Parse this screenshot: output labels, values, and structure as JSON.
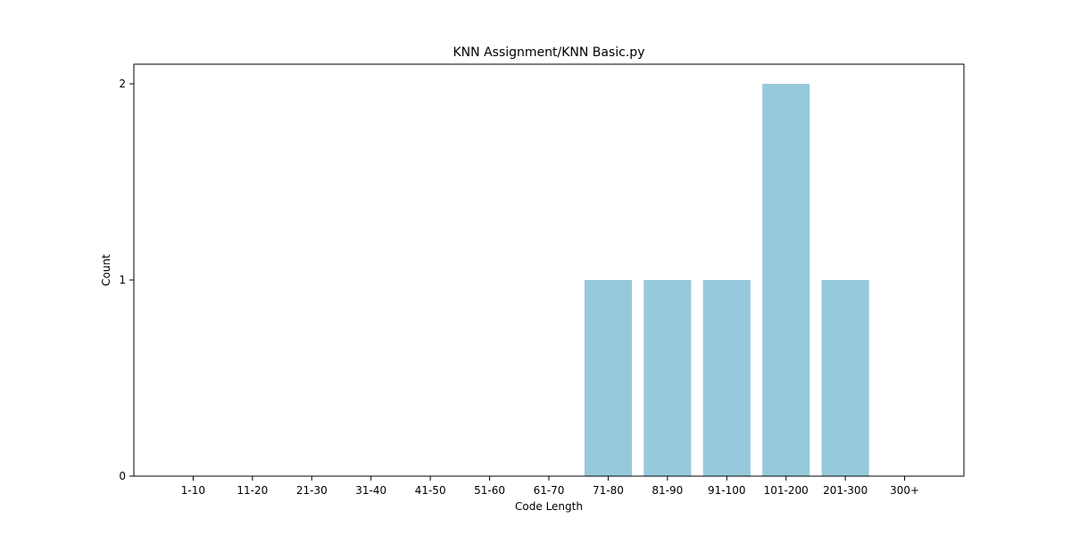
{
  "chart_data": {
    "type": "bar",
    "title": "KNN Assignment/KNN Basic.py",
    "xlabel": "Code Length",
    "ylabel": "Count",
    "categories": [
      "1-10",
      "11-20",
      "21-30",
      "31-40",
      "41-50",
      "51-60",
      "61-70",
      "71-80",
      "81-90",
      "91-100",
      "101-200",
      "201-300",
      "300+"
    ],
    "values": [
      0,
      0,
      0,
      0,
      0,
      0,
      0,
      1,
      1,
      1,
      2,
      1,
      0
    ],
    "ylim": [
      0,
      2.1
    ],
    "yticks": [
      0,
      1,
      2
    ],
    "bar_color": "#96c9dc",
    "grid": false,
    "legend": "none"
  }
}
